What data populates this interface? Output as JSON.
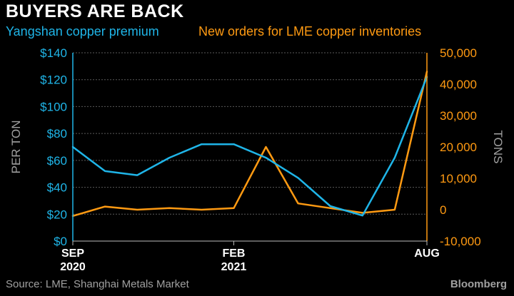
{
  "title": "BUYERS ARE BACK",
  "source": "Source: LME, Shanghai Metals Market",
  "brand": "Bloomberg",
  "colors": {
    "premium": "#1fb5e8",
    "orders": "#ff9a12",
    "grid": "#5a5a5a",
    "background": "#000000",
    "text": "#ffffff",
    "muted": "#a0a0a0"
  },
  "chart_data": {
    "type": "line",
    "grid": true,
    "x": [
      "2020-09",
      "2020-10",
      "2020-11",
      "2020-12",
      "2021-01",
      "2021-02",
      "2021-03",
      "2021-04",
      "2021-05",
      "2021-06",
      "2021-07",
      "2021-08"
    ],
    "x_ticks": [
      {
        "at": "2020-09",
        "label": "SEP",
        "sublabel": "2020"
      },
      {
        "at": "2021-02",
        "label": "FEB",
        "sublabel": "2021"
      },
      {
        "at": "2021-08",
        "label": "AUG",
        "sublabel": ""
      }
    ],
    "series": [
      {
        "name": "Yangshan copper premium",
        "axis": "left",
        "values": [
          70,
          52,
          49,
          62,
          72,
          72,
          62,
          47,
          26,
          19,
          62,
          122
        ]
      },
      {
        "name": "New orders for LME copper inventories",
        "axis": "right",
        "values": [
          -2000,
          1000,
          0,
          500,
          0,
          500,
          20000,
          2000,
          500,
          -1000,
          0,
          44000
        ]
      }
    ],
    "y_left": {
      "ylabel": "PER TON",
      "ylim": [
        0,
        140
      ],
      "ticks": [
        0,
        20,
        40,
        60,
        80,
        100,
        120,
        140
      ],
      "tick_labels": [
        "$0",
        "$20",
        "$40",
        "$60",
        "$80",
        "$100",
        "$120",
        "$140"
      ]
    },
    "y_right": {
      "ylabel": "TONS",
      "ylim": [
        -10000,
        50000
      ],
      "ticks": [
        -10000,
        0,
        10000,
        20000,
        30000,
        40000,
        50000
      ],
      "tick_labels": [
        "-10,000",
        "0",
        "10,000",
        "20,000",
        "30,000",
        "40,000",
        "50,000"
      ]
    }
  }
}
